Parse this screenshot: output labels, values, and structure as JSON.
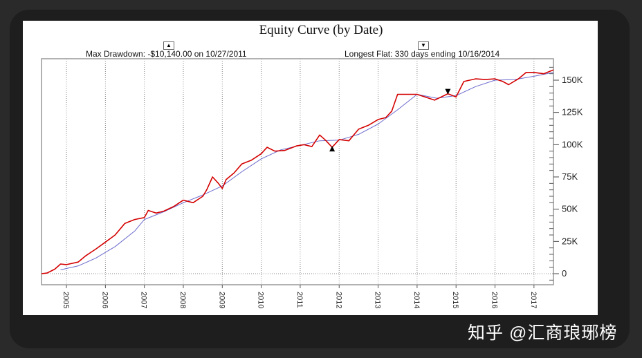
{
  "watermark": "知乎 @汇商琅琊榜",
  "chart_data": {
    "type": "line",
    "title": "Equity Curve (by Date)",
    "annotations": {
      "max_drawdown": "Max Drawdown: -$10,140.00 on 10/27/2011",
      "longest_flat": "Longest Flat: 330 days ending 10/16/2014",
      "drawdown_marker": "▲",
      "flat_marker": "▼"
    },
    "xlim": [
      2004.36,
      2017.5
    ],
    "ylim": [
      -7000,
      163000
    ],
    "x_ticks": [
      "2005",
      "2006",
      "2007",
      "2008",
      "2009",
      "2010",
      "2011",
      "2012",
      "2013",
      "2014",
      "2015",
      "2016",
      "2017"
    ],
    "y_ticks": [
      {
        "v": 0,
        "label": "0"
      },
      {
        "v": 25000,
        "label": "25K"
      },
      {
        "v": 50000,
        "label": "50K"
      },
      {
        "v": 75000,
        "label": "75K"
      },
      {
        "v": 100000,
        "label": "100K"
      },
      {
        "v": 125000,
        "label": "125K"
      },
      {
        "v": 150000,
        "label": "150K"
      }
    ],
    "grid": true,
    "colors": {
      "equity": "#d40000",
      "average": "#6a6acc",
      "grid": "#888888"
    },
    "series": [
      {
        "x": [
          2004.36,
          2004.5,
          2004.7,
          2004.85,
          2005.0,
          2005.3,
          2005.5,
          2005.75,
          2006.0,
          2006.25,
          2006.5,
          2006.75,
          2007.0,
          2007.1,
          2007.3,
          2007.5,
          2007.75,
          2008.0,
          2008.25,
          2008.5,
          2008.6,
          2008.75,
          2008.9,
          2009.0,
          2009.1,
          2009.3,
          2009.5,
          2009.75,
          2010.0,
          2010.15,
          2010.35,
          2010.6,
          2010.9,
          2011.1,
          2011.3,
          2011.5,
          2011.65,
          2011.82,
          2012.0,
          2012.25,
          2012.5,
          2012.75,
          2013.0,
          2013.2,
          2013.35,
          2013.5,
          2013.75,
          2014.0,
          2014.2,
          2014.45,
          2014.79,
          2015.0,
          2015.2,
          2015.5,
          2015.75,
          2016.0,
          2016.2,
          2016.35,
          2016.6,
          2016.8,
          2017.0,
          2017.25,
          2017.5
        ],
        "y": [
          0,
          500,
          3500,
          7500,
          7000,
          9000,
          14000,
          19000,
          24500,
          30000,
          39000,
          42000,
          43500,
          49000,
          47000,
          48500,
          52000,
          57000,
          55000,
          60000,
          65000,
          75000,
          70000,
          66000,
          73000,
          78000,
          85000,
          88000,
          93000,
          98000,
          95000,
          95500,
          99000,
          100000,
          98500,
          107500,
          103500,
          98000,
          104000,
          103000,
          112000,
          115000,
          119500,
          121000,
          126000,
          139000,
          139000,
          139000,
          137000,
          134500,
          139500,
          137000,
          149000,
          151000,
          150500,
          151000,
          149000,
          146500,
          151000,
          156000,
          156000,
          155000,
          158000
        ]
      },
      {
        "x": [
          2004.85,
          2005.3,
          2005.75,
          2006.25,
          2006.75,
          2007.0,
          2007.5,
          2008.0,
          2008.5,
          2009.0,
          2009.5,
          2010.0,
          2010.5,
          2011.0,
          2011.5,
          2012.0,
          2012.5,
          2013.0,
          2013.5,
          2014.0,
          2014.5,
          2015.0,
          2015.5,
          2016.0,
          2016.5,
          2017.0,
          2017.5
        ],
        "y": [
          3000,
          6000,
          12000,
          21000,
          33000,
          42000,
          48000,
          55000,
          61000,
          68000,
          79000,
          89000,
          96000,
          99500,
          103000,
          103500,
          108000,
          116000,
          127000,
          139000,
          136000,
          138000,
          145000,
          150000,
          150500,
          153000,
          156000
        ]
      }
    ],
    "markers": [
      {
        "type": "triangle-up",
        "x": 2011.82,
        "y": 98000
      },
      {
        "type": "triangle-down",
        "x": 2014.79,
        "y": 140000
      }
    ]
  }
}
